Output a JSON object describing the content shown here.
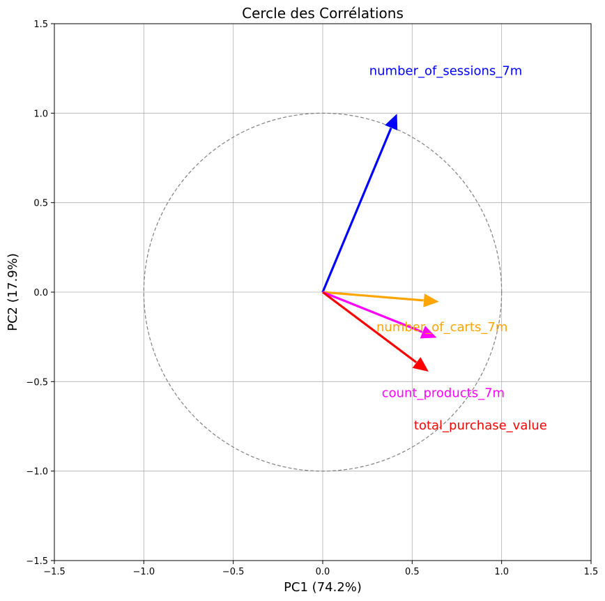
{
  "chart_data": {
    "type": "vector",
    "title": "Cercle des Corrélations",
    "xlabel": "PC1 (74.2%)",
    "ylabel": "PC2 (17.9%)",
    "xlim": [
      -1.5,
      1.5
    ],
    "ylim": [
      -1.5,
      1.5
    ],
    "grid": true,
    "unit_circle": true,
    "xticks": [
      -1.5,
      -1.0,
      -0.5,
      0.0,
      0.5,
      1.0,
      1.5
    ],
    "yticks": [
      -1.5,
      -1.0,
      -0.5,
      0.0,
      0.5,
      1.0,
      1.5
    ],
    "xtick_labels": [
      "−1.5",
      "−1.0",
      "−0.5",
      "0.0",
      "0.5",
      "1.0",
      "1.5"
    ],
    "ytick_labels": [
      "−1.5",
      "−1.0",
      "−0.5",
      "0.0",
      "0.5",
      "1.0",
      "1.5"
    ],
    "vectors": [
      {
        "label": "number_of_sessions_7m",
        "x": 0.4,
        "y": 0.96,
        "label_x": 0.26,
        "label_y": 1.24,
        "color": "#0000ff"
      },
      {
        "label": "number_of_carts_7m",
        "x": 0.61,
        "y": -0.05,
        "label_x": 0.3,
        "label_y": -0.19,
        "color": "#ffa500"
      },
      {
        "label": "count_products_7m",
        "x": 0.6,
        "y": -0.24,
        "label_x": 0.33,
        "label_y": -0.56,
        "color": "#ff00ff"
      },
      {
        "label": "total_purchase_value",
        "x": 0.56,
        "y": -0.42,
        "label_x": 0.51,
        "label_y": -0.74,
        "color": "#ff0000"
      }
    ]
  }
}
